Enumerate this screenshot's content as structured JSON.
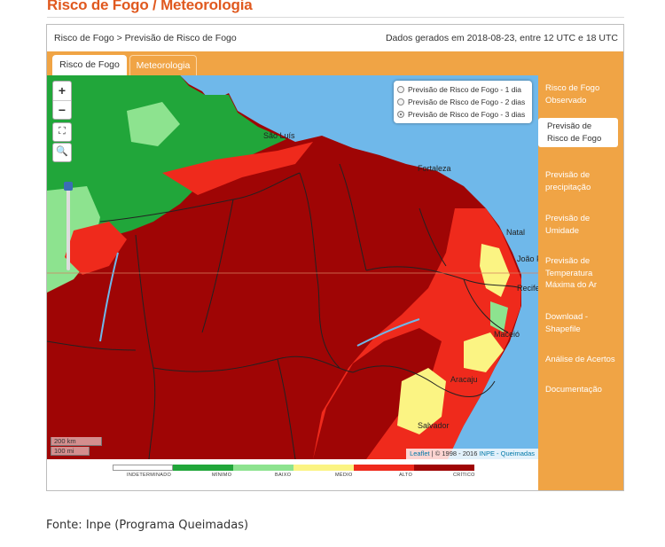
{
  "page": {
    "title": "Risco de Fogo / Meteorologia",
    "source_caption": "Fonte: Inpe (Programa Queimadas)"
  },
  "header": {
    "breadcrumb": "Risco de Fogo > Previsão de Risco de Fogo",
    "generated": "Dados gerados em 2018-08-23, entre 12 UTC e 18 UTC"
  },
  "tabs": [
    {
      "label": "Risco de Fogo",
      "active": true
    },
    {
      "label": "Meteorologia",
      "active": false
    }
  ],
  "map": {
    "controls": {
      "zoom_in": "+",
      "zoom_out": "−"
    },
    "forecast_options": [
      {
        "label": "Previsão de Risco de Fogo - 1 dia",
        "selected": false
      },
      {
        "label": "Previsão de Risco de Fogo - 2 dias",
        "selected": false
      },
      {
        "label": "Previsão de Risco de Fogo - 3 dias",
        "selected": true
      }
    ],
    "place_labels": [
      "São Luís",
      "Fortaleza",
      "Natal",
      "João Pessoa",
      "Recife",
      "Maceió",
      "Aracaju",
      "Salvador"
    ],
    "scale": {
      "km": "200 km",
      "mi": "100 mi"
    },
    "attribution": {
      "leaflet": "Leaflet",
      "text": " | © 1998 - 2016 ",
      "inpe": "INPE - Queimadas"
    }
  },
  "legend": {
    "categories": [
      {
        "label": "INDETERMINADO",
        "color": "#ffffff"
      },
      {
        "label": "MÍNIMO",
        "color": "#21a63a"
      },
      {
        "label": "BAIXO",
        "color": "#8de38f"
      },
      {
        "label": "MÉDIO",
        "color": "#fbf483"
      },
      {
        "label": "ALTO",
        "color": "#ef2a1c"
      },
      {
        "label": "CRÍTICO",
        "color": "#9f0505"
      }
    ]
  },
  "sidebar": {
    "items": [
      {
        "label": "Risco de Fogo Observado",
        "active": false
      },
      {
        "label": "Previsão de Risco de Fogo",
        "active": true
      },
      {
        "label": "Previsão de precipitação",
        "active": false
      },
      {
        "label": "Previsão de Umidade",
        "active": false
      },
      {
        "label": "Previsão de Temperatura Máxima do Ar",
        "active": false
      },
      {
        "label": "Download - Shapefile",
        "active": false
      },
      {
        "label": "Análise de Acertos",
        "active": false
      },
      {
        "label": "Documentação",
        "active": false
      }
    ]
  },
  "colors": {
    "accent": "#f0a445",
    "title": "#e0591f",
    "ocean": "#6fb8ea",
    "critical": "#9f0505",
    "high": "#ef2a1c",
    "medium": "#fbf483",
    "low": "#8de38f",
    "minimum": "#21a63a"
  }
}
